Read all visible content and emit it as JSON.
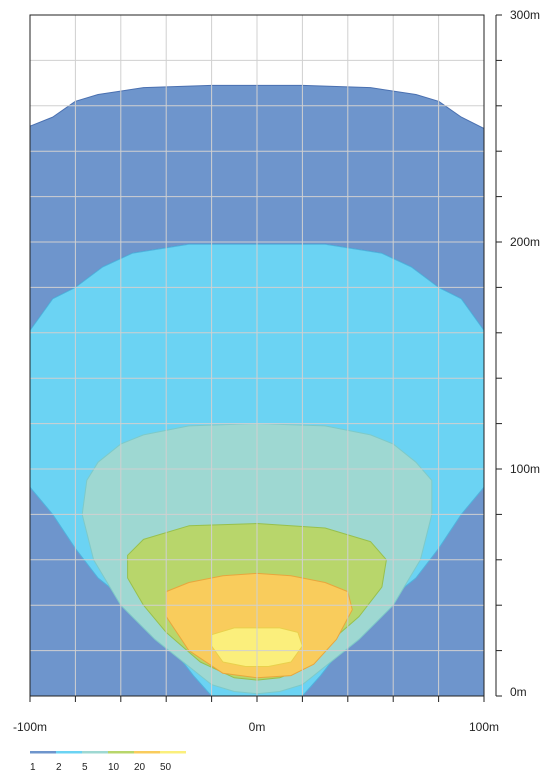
{
  "chart_data": {
    "type": "contour",
    "title": "",
    "xlabel": "",
    "ylabel": "",
    "xlim": [
      -100,
      100
    ],
    "ylim": [
      0,
      300
    ],
    "grid": true,
    "x_tick_labels": [
      {
        "value": -100,
        "label": "-100m"
      },
      {
        "value": 0,
        "label": "0m"
      },
      {
        "value": 100,
        "label": "100m"
      }
    ],
    "y_tick_labels": [
      {
        "value": 300,
        "label": "300m"
      },
      {
        "value": 200,
        "label": "200m"
      },
      {
        "value": 100,
        "label": "100m"
      },
      {
        "value": 0,
        "label": "0m"
      }
    ],
    "legend": {
      "placement": "bottom-left",
      "entries": [
        {
          "label": "1",
          "color": "#6e95cc"
        },
        {
          "label": "2",
          "color": "#6bd3f3"
        },
        {
          "label": "5",
          "color": "#9ed8d2"
        },
        {
          "label": "10",
          "color": "#b8d66b"
        },
        {
          "label": "20",
          "color": "#f9cc5c"
        },
        {
          "label": "50",
          "color": "#fbef7c"
        }
      ]
    },
    "contours": [
      {
        "level": "1",
        "color": "#6e95cc",
        "stroke": "#4a70b0",
        "points": [
          [
            -100,
            0
          ],
          [
            -100,
            251
          ],
          [
            -90,
            255
          ],
          [
            -80,
            262
          ],
          [
            -70,
            265
          ],
          [
            -50,
            268
          ],
          [
            -20,
            269
          ],
          [
            0,
            269
          ],
          [
            20,
            269
          ],
          [
            50,
            268
          ],
          [
            70,
            265
          ],
          [
            80,
            262
          ],
          [
            90,
            255
          ],
          [
            100,
            250
          ],
          [
            100,
            0
          ],
          [
            20,
            0
          ],
          [
            23,
            15
          ],
          [
            28,
            31
          ],
          [
            46,
            56
          ],
          [
            66,
            79
          ],
          [
            80,
            109
          ],
          [
            100,
            133
          ],
          [
            100,
            161
          ],
          [
            90,
            175
          ],
          [
            80,
            180
          ],
          [
            68,
            189
          ],
          [
            55,
            195
          ],
          [
            30,
            199
          ],
          [
            0,
            199
          ],
          [
            -30,
            199
          ],
          [
            -55,
            195
          ],
          [
            -68,
            189
          ],
          [
            -80,
            180
          ],
          [
            -90,
            175
          ],
          [
            -100,
            161
          ],
          [
            -100,
            133
          ],
          [
            -80,
            109
          ],
          [
            -66,
            79
          ],
          [
            -46,
            56
          ],
          [
            -28,
            31
          ],
          [
            -23,
            15
          ],
          [
            -20,
            0
          ]
        ]
      },
      {
        "level": "2",
        "color": "#6bd3f3",
        "stroke": "#4fb2dd",
        "points": [
          [
            -100,
            161
          ],
          [
            -90,
            175
          ],
          [
            -80,
            180
          ],
          [
            -68,
            189
          ],
          [
            -55,
            195
          ],
          [
            -30,
            199
          ],
          [
            0,
            199
          ],
          [
            30,
            199
          ],
          [
            55,
            195
          ],
          [
            68,
            189
          ],
          [
            80,
            180
          ],
          [
            90,
            175
          ],
          [
            100,
            161
          ],
          [
            100,
            92
          ],
          [
            90,
            80
          ],
          [
            80,
            65
          ],
          [
            70,
            52
          ],
          [
            55,
            40
          ],
          [
            45,
            30
          ],
          [
            35,
            18
          ],
          [
            28,
            9
          ],
          [
            20,
            0
          ],
          [
            -20,
            0
          ],
          [
            -28,
            9
          ],
          [
            -35,
            18
          ],
          [
            -45,
            30
          ],
          [
            -55,
            40
          ],
          [
            -70,
            52
          ],
          [
            -80,
            65
          ],
          [
            -90,
            80
          ],
          [
            -100,
            92
          ]
        ]
      },
      {
        "level": "5",
        "color": "#9ed8d2",
        "stroke": "#7ecac8",
        "points": [
          [
            -75,
            95
          ],
          [
            -70,
            103
          ],
          [
            -60,
            111
          ],
          [
            -50,
            115
          ],
          [
            -30,
            119
          ],
          [
            0,
            120
          ],
          [
            30,
            119
          ],
          [
            50,
            115
          ],
          [
            60,
            111
          ],
          [
            70,
            103
          ],
          [
            77,
            95
          ],
          [
            77,
            80
          ],
          [
            72,
            60
          ],
          [
            60,
            40
          ],
          [
            45,
            25
          ],
          [
            30,
            13
          ],
          [
            20,
            5
          ],
          [
            10,
            2
          ],
          [
            0,
            1
          ],
          [
            -10,
            2
          ],
          [
            -20,
            5
          ],
          [
            -30,
            13
          ],
          [
            -45,
            25
          ],
          [
            -60,
            40
          ],
          [
            -72,
            60
          ],
          [
            -77,
            80
          ]
        ]
      },
      {
        "level": "10",
        "color": "#b8d66b",
        "stroke": "#97c04d",
        "points": [
          [
            -57,
            62
          ],
          [
            -50,
            69
          ],
          [
            -30,
            75
          ],
          [
            0,
            76
          ],
          [
            30,
            74
          ],
          [
            50,
            68
          ],
          [
            57,
            60
          ],
          [
            55,
            48
          ],
          [
            45,
            35
          ],
          [
            30,
            22
          ],
          [
            20,
            12
          ],
          [
            10,
            8
          ],
          [
            0,
            7
          ],
          [
            -10,
            8
          ],
          [
            -25,
            15
          ],
          [
            -40,
            28
          ],
          [
            -50,
            40
          ],
          [
            -57,
            52
          ]
        ]
      },
      {
        "level": "20",
        "color": "#f9cc5c",
        "stroke": "#e8a63d",
        "points": [
          [
            -40,
            46
          ],
          [
            -30,
            50
          ],
          [
            -15,
            53
          ],
          [
            0,
            54
          ],
          [
            15,
            53
          ],
          [
            30,
            50
          ],
          [
            40,
            46
          ],
          [
            42,
            38
          ],
          [
            35,
            25
          ],
          [
            25,
            14
          ],
          [
            15,
            9
          ],
          [
            0,
            8
          ],
          [
            -15,
            10
          ],
          [
            -30,
            20
          ],
          [
            -40,
            35
          ]
        ]
      },
      {
        "level": "50",
        "color": "#fbef7c",
        "stroke": "#e9d04c",
        "points": [
          [
            -20,
            27
          ],
          [
            -10,
            30
          ],
          [
            0,
            30
          ],
          [
            10,
            30
          ],
          [
            18,
            28
          ],
          [
            20,
            22
          ],
          [
            15,
            15
          ],
          [
            5,
            13
          ],
          [
            -5,
            13
          ],
          [
            -15,
            15
          ],
          [
            -20,
            22
          ]
        ]
      }
    ]
  }
}
